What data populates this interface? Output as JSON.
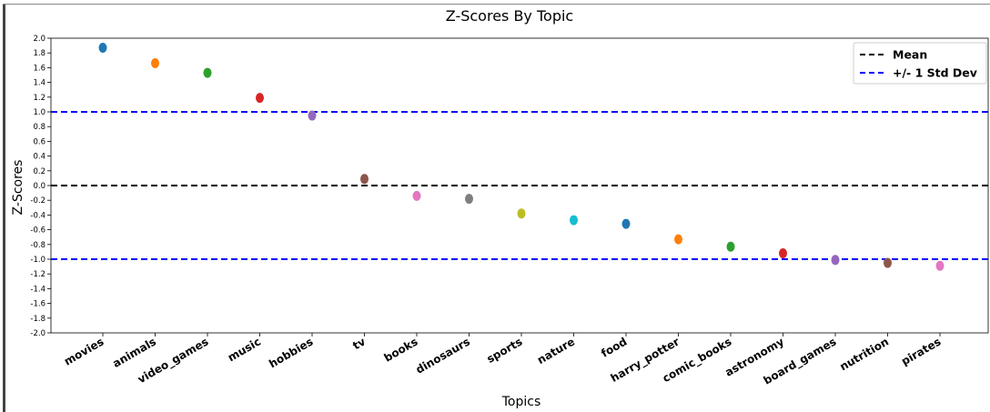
{
  "chart_data": {
    "type": "scatter",
    "title": "Z-Scores By Topic",
    "xlabel": "Topics",
    "ylabel": "Z-Scores",
    "ylim": [
      -2.0,
      2.0
    ],
    "yticks": [
      "2.0",
      "1.8",
      "1.6",
      "1.4",
      "1.2",
      "1.0",
      "0.8",
      "0.6",
      "0.4",
      "0.2",
      "0.0",
      "-0.2",
      "-0.4",
      "-0.6",
      "-0.8",
      "-1.0",
      "-1.2",
      "-1.4",
      "-1.6",
      "-1.8",
      "-2.0"
    ],
    "grid": false,
    "legend_position": "top-right",
    "categories": [
      "movies",
      "animals",
      "video_games",
      "music",
      "hobbies",
      "tv",
      "books",
      "dinosaurs",
      "sports",
      "nature",
      "food",
      "harry_potter",
      "comic_books",
      "astronomy",
      "board_games",
      "nutrition",
      "pirates"
    ],
    "values": [
      1.87,
      1.66,
      1.53,
      1.19,
      0.95,
      0.09,
      -0.14,
      -0.18,
      -0.38,
      -0.47,
      -0.52,
      -0.73,
      -0.83,
      -0.92,
      -1.01,
      -1.05,
      -1.09
    ],
    "colors": [
      "#1f77b4",
      "#ff7f0e",
      "#2ca02c",
      "#d62728",
      "#9467bd",
      "#8c564b",
      "#e377c2",
      "#7f7f7f",
      "#bcbd22",
      "#17becf",
      "#1f77b4",
      "#ff7f0e",
      "#2ca02c",
      "#d62728",
      "#9467bd",
      "#8c564b",
      "#e377c2"
    ],
    "reference_lines": [
      {
        "name": "Mean",
        "y": 0.0,
        "color": "#000000",
        "style": "dashed"
      },
      {
        "name": "+/- 1 Std Dev",
        "y": 1.0,
        "color": "#0000ff",
        "style": "dashed"
      },
      {
        "name": "+/- 1 Std Dev",
        "y": -1.0,
        "color": "#0000ff",
        "style": "dashed"
      }
    ],
    "legend": [
      {
        "label": "Mean",
        "color": "#000000"
      },
      {
        "label": "+/- 1 Std Dev",
        "color": "#0000ff"
      }
    ]
  }
}
